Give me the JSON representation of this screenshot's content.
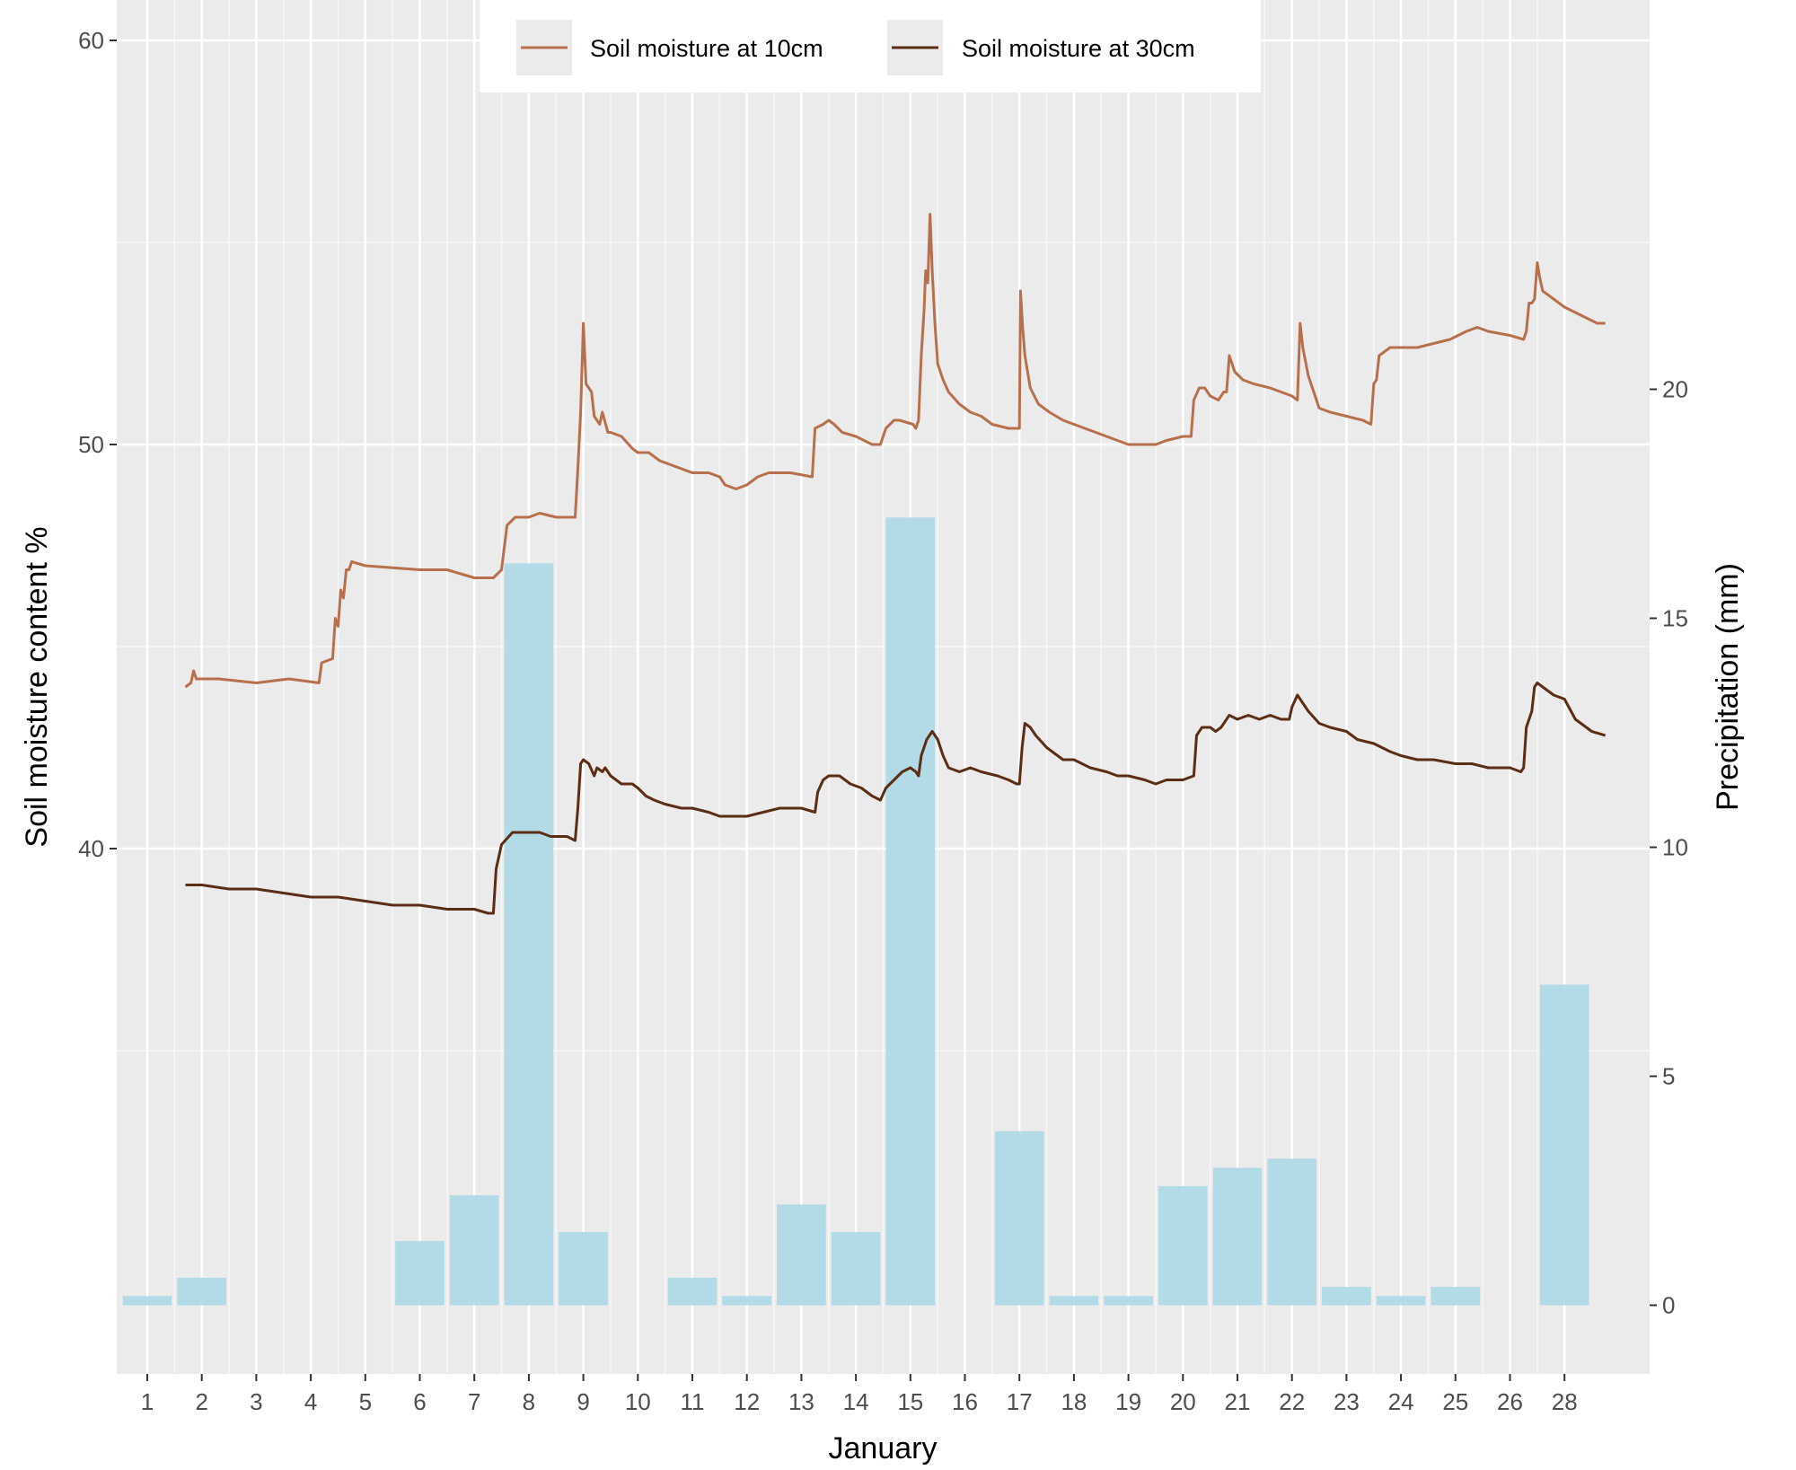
{
  "chart_data": {
    "type": "bar",
    "xlabel": "January",
    "ylabel": "Soil moisture content %",
    "y2label": "Precipitation (mm)",
    "ylim": [
      27,
      61
    ],
    "y_ticks": [
      40,
      50,
      60
    ],
    "y2lim": [
      -1.5,
      28.5
    ],
    "y2_ticks": [
      0,
      5,
      10,
      15,
      20
    ],
    "grid": true,
    "legend_position": "top",
    "colors": {
      "panel": "#ebebeb",
      "precip": "#add8e6",
      "moist10": "#b8704c",
      "moist30": "#5c2d15"
    },
    "categories": [
      "1",
      "2",
      "3",
      "4",
      "5",
      "6",
      "7",
      "8",
      "9",
      "10",
      "11",
      "12",
      "13",
      "14",
      "15",
      "16",
      "17",
      "18",
      "19",
      "20",
      "21",
      "22",
      "23",
      "24",
      "25",
      "26",
      "28"
    ],
    "precipitation_mm": [
      0.2,
      0.6,
      0,
      0,
      0,
      1.4,
      2.4,
      16.2,
      1.6,
      0,
      0.6,
      0.2,
      2.2,
      1.6,
      17.2,
      0,
      3.8,
      0.2,
      0.2,
      2.6,
      3.0,
      3.2,
      0.4,
      0.2,
      0.4,
      0,
      7.0
    ],
    "series": [
      {
        "name": "Soil moisture at 10cm",
        "points": [
          [
            1.7,
            44
          ],
          [
            1.8,
            44.1
          ],
          [
            1.85,
            44.4
          ],
          [
            1.9,
            44.2
          ],
          [
            2.3,
            44.2
          ],
          [
            3.0,
            44.1
          ],
          [
            3.6,
            44.2
          ],
          [
            4.15,
            44.1
          ],
          [
            4.2,
            44.6
          ],
          [
            4.4,
            44.7
          ],
          [
            4.45,
            45.7
          ],
          [
            4.5,
            45.5
          ],
          [
            4.55,
            46.4
          ],
          [
            4.6,
            46.2
          ],
          [
            4.65,
            46.9
          ],
          [
            4.7,
            46.9
          ],
          [
            4.75,
            47.1
          ],
          [
            5.0,
            47.0
          ],
          [
            6.0,
            46.9
          ],
          [
            6.5,
            46.9
          ],
          [
            7.0,
            46.7
          ],
          [
            7.35,
            46.7
          ],
          [
            7.5,
            46.9
          ],
          [
            7.6,
            48.0
          ],
          [
            7.75,
            48.2
          ],
          [
            8.0,
            48.2
          ],
          [
            8.2,
            48.3
          ],
          [
            8.5,
            48.2
          ],
          [
            8.85,
            48.2
          ],
          [
            8.9,
            49.4
          ],
          [
            8.95,
            50.8
          ],
          [
            9.0,
            53.0
          ],
          [
            9.05,
            51.5
          ],
          [
            9.1,
            51.4
          ],
          [
            9.15,
            51.3
          ],
          [
            9.2,
            50.7
          ],
          [
            9.3,
            50.5
          ],
          [
            9.35,
            50.8
          ],
          [
            9.45,
            50.3
          ],
          [
            9.5,
            50.3
          ],
          [
            9.7,
            50.2
          ],
          [
            9.9,
            49.9
          ],
          [
            10.0,
            49.8
          ],
          [
            10.2,
            49.8
          ],
          [
            10.4,
            49.6
          ],
          [
            10.6,
            49.5
          ],
          [
            11.0,
            49.3
          ],
          [
            11.3,
            49.3
          ],
          [
            11.5,
            49.2
          ],
          [
            11.6,
            49.0
          ],
          [
            11.8,
            48.9
          ],
          [
            12.0,
            49.0
          ],
          [
            12.2,
            49.2
          ],
          [
            12.4,
            49.3
          ],
          [
            12.8,
            49.3
          ],
          [
            13.2,
            49.2
          ],
          [
            13.25,
            50.4
          ],
          [
            13.4,
            50.5
          ],
          [
            13.5,
            50.6
          ],
          [
            13.6,
            50.5
          ],
          [
            13.75,
            50.3
          ],
          [
            14.0,
            50.2
          ],
          [
            14.3,
            50.0
          ],
          [
            14.45,
            50.0
          ],
          [
            14.55,
            50.4
          ],
          [
            14.7,
            50.6
          ],
          [
            14.8,
            50.6
          ],
          [
            15.05,
            50.5
          ],
          [
            15.1,
            50.4
          ],
          [
            15.15,
            50.6
          ],
          [
            15.2,
            52.2
          ],
          [
            15.25,
            53.3
          ],
          [
            15.28,
            54.3
          ],
          [
            15.32,
            54.0
          ],
          [
            15.36,
            55.7
          ],
          [
            15.4,
            54.3
          ],
          [
            15.45,
            53.0
          ],
          [
            15.5,
            52.0
          ],
          [
            15.6,
            51.6
          ],
          [
            15.7,
            51.3
          ],
          [
            15.9,
            51.0
          ],
          [
            16.1,
            50.8
          ],
          [
            16.3,
            50.7
          ],
          [
            16.5,
            50.5
          ],
          [
            16.8,
            50.4
          ],
          [
            17.0,
            50.4
          ],
          [
            17.02,
            53.8
          ],
          [
            17.06,
            52.9
          ],
          [
            17.1,
            52.2
          ],
          [
            17.2,
            51.4
          ],
          [
            17.35,
            51.0
          ],
          [
            17.55,
            50.8
          ],
          [
            17.8,
            50.6
          ],
          [
            18.0,
            50.5
          ],
          [
            18.2,
            50.4
          ],
          [
            18.4,
            50.3
          ],
          [
            18.6,
            50.2
          ],
          [
            19.0,
            50.0
          ],
          [
            19.3,
            50.0
          ],
          [
            19.5,
            50.0
          ],
          [
            19.7,
            50.1
          ],
          [
            20.0,
            50.2
          ],
          [
            20.15,
            50.2
          ],
          [
            20.2,
            51.1
          ],
          [
            20.3,
            51.4
          ],
          [
            20.4,
            51.4
          ],
          [
            20.5,
            51.2
          ],
          [
            20.65,
            51.1
          ],
          [
            20.75,
            51.3
          ],
          [
            20.8,
            51.3
          ],
          [
            20.85,
            52.2
          ],
          [
            20.95,
            51.8
          ],
          [
            21.1,
            51.6
          ],
          [
            21.3,
            51.5
          ],
          [
            21.6,
            51.4
          ],
          [
            22.0,
            51.2
          ],
          [
            22.1,
            51.1
          ],
          [
            22.15,
            53.0
          ],
          [
            22.2,
            52.4
          ],
          [
            22.3,
            51.7
          ],
          [
            22.4,
            51.3
          ],
          [
            22.5,
            50.9
          ],
          [
            22.7,
            50.8
          ],
          [
            23.0,
            50.7
          ],
          [
            23.3,
            50.6
          ],
          [
            23.45,
            50.5
          ],
          [
            23.5,
            51.5
          ],
          [
            23.55,
            51.6
          ],
          [
            23.6,
            52.2
          ],
          [
            23.7,
            52.3
          ],
          [
            23.8,
            52.4
          ],
          [
            24.0,
            52.4
          ],
          [
            24.3,
            52.4
          ],
          [
            24.6,
            52.5
          ],
          [
            24.9,
            52.6
          ],
          [
            25.2,
            52.8
          ],
          [
            25.4,
            52.9
          ],
          [
            25.6,
            52.8
          ],
          [
            26.0,
            52.7
          ],
          [
            26.25,
            52.6
          ],
          [
            26.3,
            52.8
          ],
          [
            26.35,
            53.5
          ],
          [
            26.4,
            53.5
          ],
          [
            26.45,
            53.6
          ],
          [
            26.5,
            54.5
          ],
          [
            26.55,
            54.1
          ],
          [
            26.6,
            53.8
          ],
          [
            26.8,
            53.6
          ],
          [
            27.0,
            53.4
          ],
          [
            27.3,
            53.2
          ],
          [
            27.6,
            53.0
          ],
          [
            27.75,
            53.0
          ]
        ]
      },
      {
        "name": "Soil moisture at 30cm",
        "points": [
          [
            1.7,
            39.1
          ],
          [
            2.0,
            39.1
          ],
          [
            2.5,
            39.0
          ],
          [
            3.0,
            39.0
          ],
          [
            3.5,
            38.9
          ],
          [
            4.0,
            38.8
          ],
          [
            4.5,
            38.8
          ],
          [
            5.0,
            38.7
          ],
          [
            5.5,
            38.6
          ],
          [
            6.0,
            38.6
          ],
          [
            6.5,
            38.5
          ],
          [
            7.0,
            38.5
          ],
          [
            7.25,
            38.4
          ],
          [
            7.35,
            38.4
          ],
          [
            7.4,
            39.5
          ],
          [
            7.5,
            40.1
          ],
          [
            7.7,
            40.4
          ],
          [
            8.0,
            40.4
          ],
          [
            8.2,
            40.4
          ],
          [
            8.4,
            40.3
          ],
          [
            8.7,
            40.3
          ],
          [
            8.85,
            40.2
          ],
          [
            8.9,
            41.0
          ],
          [
            8.95,
            42.1
          ],
          [
            9.0,
            42.2
          ],
          [
            9.1,
            42.1
          ],
          [
            9.2,
            41.8
          ],
          [
            9.25,
            42.0
          ],
          [
            9.35,
            41.9
          ],
          [
            9.4,
            42.0
          ],
          [
            9.5,
            41.8
          ],
          [
            9.7,
            41.6
          ],
          [
            9.9,
            41.6
          ],
          [
            10.0,
            41.5
          ],
          [
            10.15,
            41.3
          ],
          [
            10.3,
            41.2
          ],
          [
            10.5,
            41.1
          ],
          [
            10.8,
            41.0
          ],
          [
            11.0,
            41.0
          ],
          [
            11.3,
            40.9
          ],
          [
            11.5,
            40.8
          ],
          [
            11.8,
            40.8
          ],
          [
            12.0,
            40.8
          ],
          [
            12.3,
            40.9
          ],
          [
            12.6,
            41.0
          ],
          [
            13.0,
            41.0
          ],
          [
            13.25,
            40.9
          ],
          [
            13.3,
            41.4
          ],
          [
            13.4,
            41.7
          ],
          [
            13.5,
            41.8
          ],
          [
            13.7,
            41.8
          ],
          [
            13.9,
            41.6
          ],
          [
            14.1,
            41.5
          ],
          [
            14.3,
            41.3
          ],
          [
            14.45,
            41.2
          ],
          [
            14.55,
            41.5
          ],
          [
            14.7,
            41.7
          ],
          [
            14.85,
            41.9
          ],
          [
            15.0,
            42.0
          ],
          [
            15.1,
            41.9
          ],
          [
            15.15,
            41.8
          ],
          [
            15.2,
            42.3
          ],
          [
            15.3,
            42.7
          ],
          [
            15.4,
            42.9
          ],
          [
            15.5,
            42.7
          ],
          [
            15.6,
            42.3
          ],
          [
            15.7,
            42.0
          ],
          [
            15.9,
            41.9
          ],
          [
            16.1,
            42.0
          ],
          [
            16.3,
            41.9
          ],
          [
            16.6,
            41.8
          ],
          [
            16.8,
            41.7
          ],
          [
            16.95,
            41.6
          ],
          [
            17.0,
            41.6
          ],
          [
            17.05,
            42.5
          ],
          [
            17.1,
            43.1
          ],
          [
            17.2,
            43.0
          ],
          [
            17.3,
            42.8
          ],
          [
            17.5,
            42.5
          ],
          [
            17.8,
            42.2
          ],
          [
            18.0,
            42.2
          ],
          [
            18.3,
            42.0
          ],
          [
            18.6,
            41.9
          ],
          [
            18.8,
            41.8
          ],
          [
            19.0,
            41.8
          ],
          [
            19.3,
            41.7
          ],
          [
            19.5,
            41.6
          ],
          [
            19.7,
            41.7
          ],
          [
            20.0,
            41.7
          ],
          [
            20.2,
            41.8
          ],
          [
            20.25,
            42.8
          ],
          [
            20.35,
            43.0
          ],
          [
            20.5,
            43.0
          ],
          [
            20.6,
            42.9
          ],
          [
            20.7,
            43.0
          ],
          [
            20.85,
            43.3
          ],
          [
            21.0,
            43.2
          ],
          [
            21.2,
            43.3
          ],
          [
            21.4,
            43.2
          ],
          [
            21.6,
            43.3
          ],
          [
            21.8,
            43.2
          ],
          [
            21.95,
            43.2
          ],
          [
            22.0,
            43.5
          ],
          [
            22.1,
            43.8
          ],
          [
            22.2,
            43.6
          ],
          [
            22.3,
            43.4
          ],
          [
            22.5,
            43.1
          ],
          [
            22.7,
            43.0
          ],
          [
            23.0,
            42.9
          ],
          [
            23.2,
            42.7
          ],
          [
            23.5,
            42.6
          ],
          [
            23.8,
            42.4
          ],
          [
            24.0,
            42.3
          ],
          [
            24.3,
            42.2
          ],
          [
            24.6,
            42.2
          ],
          [
            25.0,
            42.1
          ],
          [
            25.3,
            42.1
          ],
          [
            25.6,
            42.0
          ],
          [
            26.0,
            42.0
          ],
          [
            26.2,
            41.9
          ],
          [
            26.25,
            42.0
          ],
          [
            26.3,
            43.0
          ],
          [
            26.4,
            43.4
          ],
          [
            26.45,
            44.0
          ],
          [
            26.5,
            44.1
          ],
          [
            26.6,
            44.0
          ],
          [
            26.8,
            43.8
          ],
          [
            27.0,
            43.7
          ],
          [
            27.2,
            43.2
          ],
          [
            27.5,
            42.9
          ],
          [
            27.75,
            42.8
          ]
        ]
      }
    ]
  }
}
